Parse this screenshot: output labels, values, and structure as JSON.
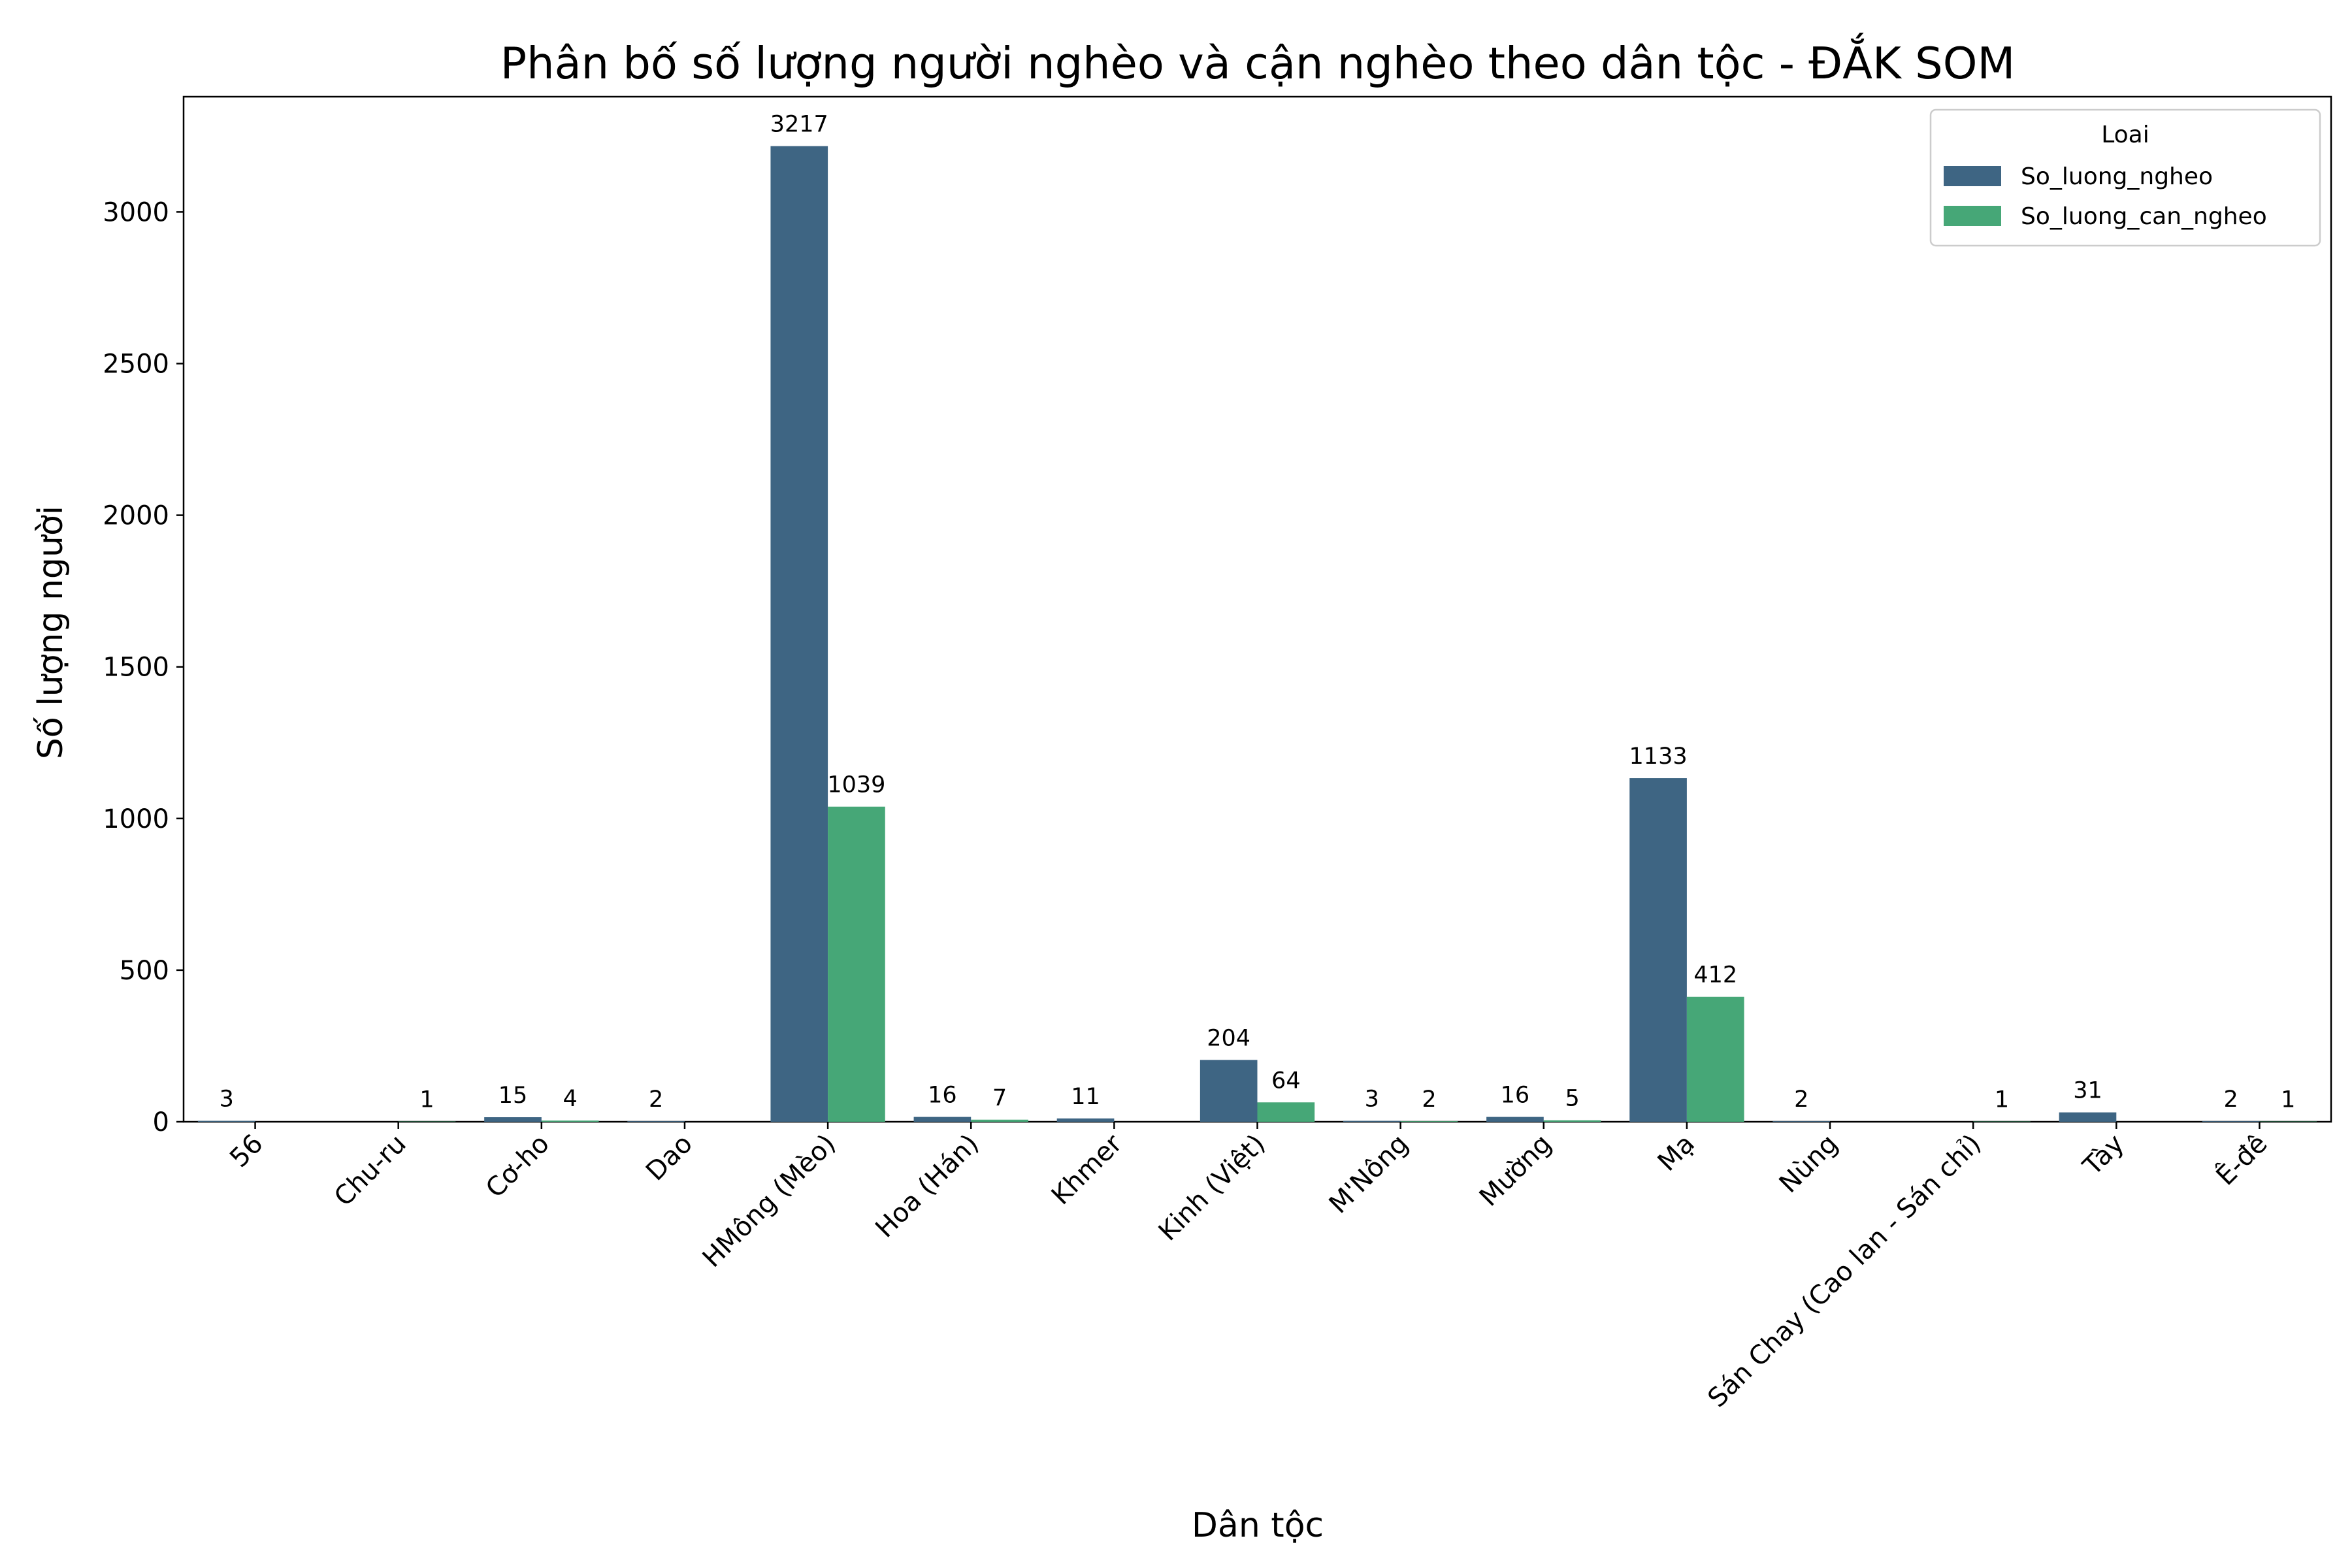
{
  "chart_data": {
    "type": "bar",
    "title": "Phân bố số lượng người nghèo và cận nghèo theo dân tộc - ĐẮK SOM",
    "xlabel": "Dân tộc",
    "ylabel": "Số lượng người",
    "ylim": [
      0,
      3380
    ],
    "yticks": [
      0,
      500,
      1000,
      1500,
      2000,
      2500,
      3000
    ],
    "grid": false,
    "categories": [
      "56",
      "Chu-ru",
      "Cơ-ho",
      "Dao",
      "HMông (Mèo)",
      "Hoa (Hán)",
      "Khmer",
      "Kinh (Việt)",
      "M'Nông",
      "Mường",
      "Mạ",
      "Nùng",
      "Sán Chay (Cao lan - Sán chỉ)",
      "Tày",
      "Ê-đê"
    ],
    "series": [
      {
        "name": "So_luong_ngheo",
        "color": "#3e6583",
        "values": [
          3,
          null,
          15,
          2,
          3217,
          16,
          11,
          204,
          3,
          16,
          1133,
          2,
          null,
          31,
          2
        ]
      },
      {
        "name": "So_luong_can_ngheo",
        "color": "#46a777",
        "values": [
          null,
          1,
          4,
          null,
          1039,
          7,
          null,
          64,
          2,
          5,
          412,
          null,
          1,
          null,
          1
        ]
      }
    ],
    "legend": {
      "title": "Loai",
      "placement": "top-right"
    }
  }
}
